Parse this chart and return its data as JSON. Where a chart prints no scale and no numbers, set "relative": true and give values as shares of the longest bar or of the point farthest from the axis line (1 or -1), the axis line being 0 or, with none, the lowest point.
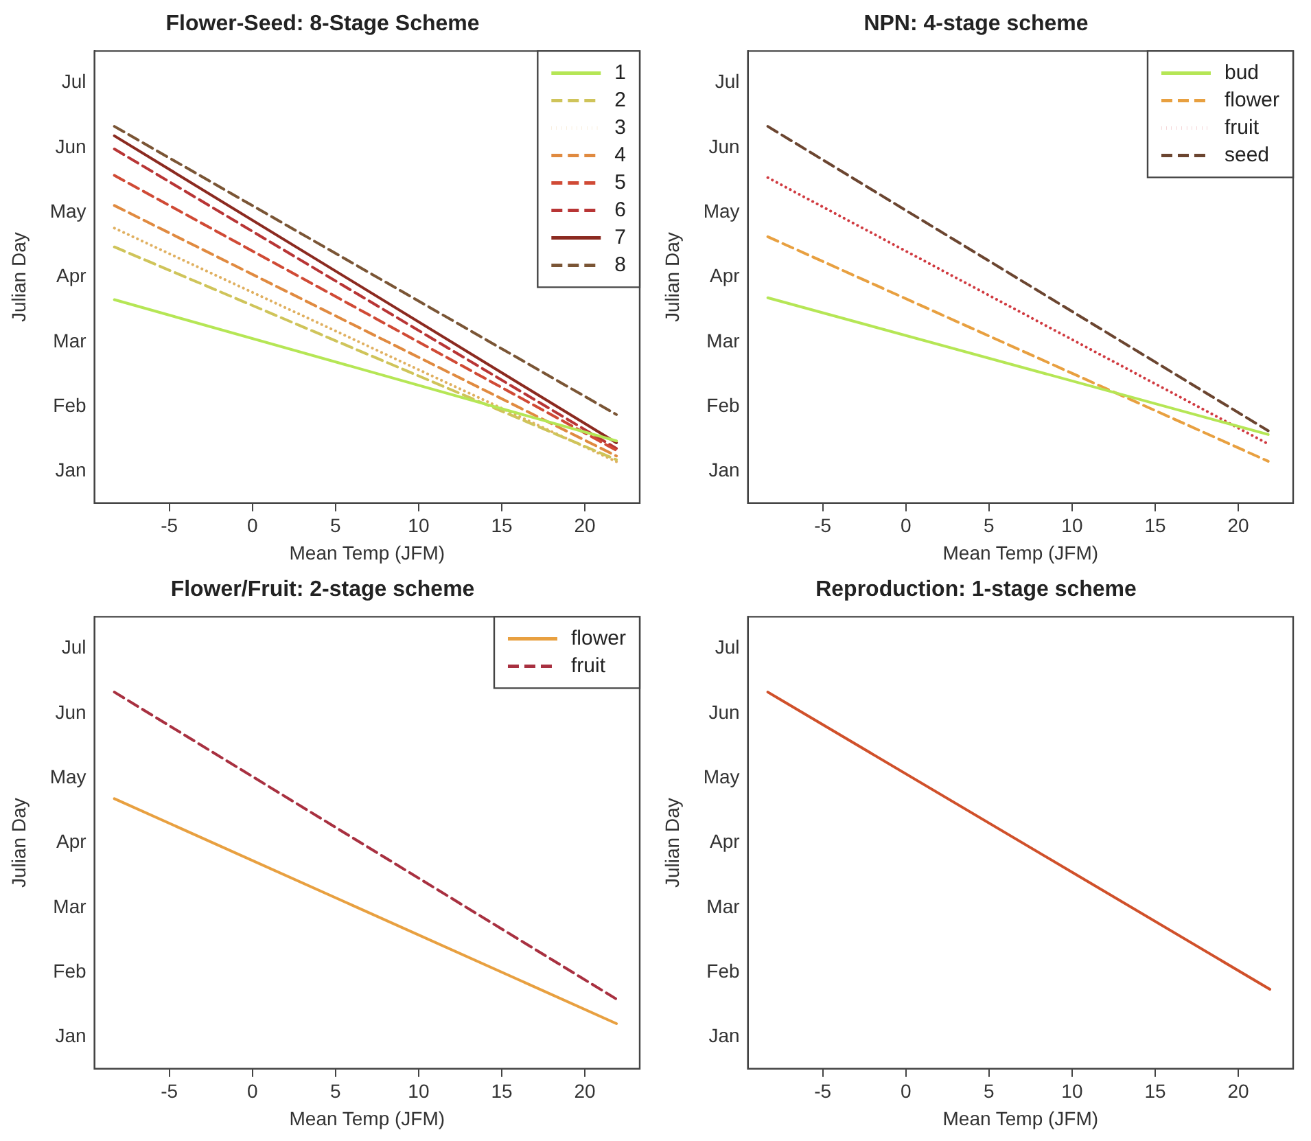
{
  "chart_data": [
    {
      "type": "line",
      "relative": true,
      "title": "Flower-Seed: 8-Stage Scheme",
      "xlabel": "Mean Temp (JFM)",
      "ylabel": "Julian Day",
      "annotations": [
        "Jan",
        "Feb",
        "Mar",
        "Apr",
        "May",
        "Jun",
        "Jul"
      ],
      "x": [
        -8.3,
        21.9
      ],
      "xlim": [
        -9.5,
        23.3
      ],
      "xticks": [
        -5,
        0,
        5,
        10,
        15,
        20
      ],
      "legend": "top right",
      "series": [
        {
          "name": "1",
          "color": "#b5e655",
          "line_style": "solid",
          "values": [
            0.54,
            0.165
          ]
        },
        {
          "name": "2",
          "color": "#cfc45a",
          "line_style": "dashed",
          "values": [
            0.68,
            0.115
          ]
        },
        {
          "name": "3",
          "color": "#e0b060",
          "line_style": "dotted",
          "values": [
            0.73,
            0.11
          ]
        },
        {
          "name": "4",
          "color": "#e08a40",
          "line_style": "dashed",
          "values": [
            0.79,
            0.125
          ]
        },
        {
          "name": "5",
          "color": "#d04a35",
          "line_style": "dashed",
          "values": [
            0.87,
            0.14
          ]
        },
        {
          "name": "6",
          "color": "#b83535",
          "line_style": "dashed",
          "values": [
            0.94,
            0.145
          ]
        },
        {
          "name": "7",
          "color": "#8b2a20",
          "line_style": "solid",
          "values": [
            0.975,
            0.16
          ]
        },
        {
          "name": "8",
          "color": "#7a5535",
          "line_style": "dashed",
          "values": [
            1,
            0.235
          ]
        }
      ]
    },
    {
      "type": "line",
      "relative": true,
      "title": "NPN: 4-stage scheme",
      "xlabel": "Mean Temp (JFM)",
      "ylabel": "Julian Day",
      "annotations": [
        "Jan",
        "Feb",
        "Mar",
        "Apr",
        "May",
        "Jun",
        "Jul"
      ],
      "x": [
        -8.3,
        21.8
      ],
      "xlim": [
        -9.5,
        23.3
      ],
      "xticks": [
        -5,
        0,
        5,
        10,
        15,
        20
      ],
      "legend": "top right",
      "series": [
        {
          "name": "bud",
          "color": "#b5e655",
          "line_style": "solid",
          "values": [
            0.545,
            0.182
          ]
        },
        {
          "name": "flower",
          "color": "#e8a040",
          "line_style": "dashed",
          "values": [
            0.707,
            0.111
          ]
        },
        {
          "name": "fruit",
          "color": "#d03a40",
          "line_style": "dotted",
          "values": [
            0.864,
            0.157
          ]
        },
        {
          "name": "seed",
          "color": "#6b4530",
          "line_style": "dashed",
          "values": [
            1,
            0.192
          ]
        }
      ]
    },
    {
      "type": "line",
      "relative": true,
      "title": "Flower/Fruit: 2-stage scheme",
      "xlabel": "Mean Temp (JFM)",
      "ylabel": "Julian Day",
      "annotations": [
        "Jan",
        "Feb",
        "Mar",
        "Apr",
        "May",
        "Jun",
        "Jul"
      ],
      "x": [
        -8.3,
        21.9
      ],
      "xlim": [
        -9.5,
        23.3
      ],
      "xticks": [
        -5,
        0,
        5,
        10,
        15,
        20
      ],
      "legend": "top right",
      "series": [
        {
          "name": "flower",
          "color": "#e8a040",
          "line_style": "solid",
          "values": [
            0.717,
            0.12
          ]
        },
        {
          "name": "fruit",
          "color": "#a83040",
          "line_style": "dashed",
          "values": [
            1,
            0.185
          ]
        }
      ]
    },
    {
      "type": "line",
      "relative": true,
      "title": "Reproduction: 1-stage scheme",
      "xlabel": "Mean Temp (JFM)",
      "ylabel": "Julian Day",
      "annotations": [
        "Jan",
        "Feb",
        "Mar",
        "Apr",
        "May",
        "Jun",
        "Jul"
      ],
      "x": [
        -8.3,
        21.9
      ],
      "xlim": [
        -9.5,
        23.3
      ],
      "xticks": [
        -5,
        0,
        5,
        10,
        15,
        20
      ],
      "legend": false,
      "series": [
        {
          "color": "#d0502a",
          "line_style": "solid",
          "values": [
            1,
            0.211
          ]
        }
      ]
    }
  ]
}
